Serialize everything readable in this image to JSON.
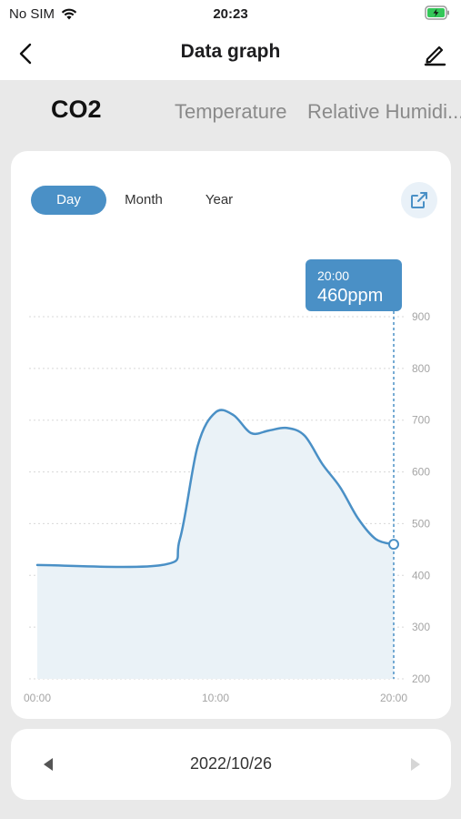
{
  "status": {
    "carrier": "No SIM",
    "time": "20:23"
  },
  "nav": {
    "title": "Data graph"
  },
  "tabs": [
    {
      "label": "CO2",
      "active": true
    },
    {
      "label": "Temperature",
      "active": false
    },
    {
      "label": "Relative Humidi...",
      "active": false
    }
  ],
  "periods": [
    {
      "label": "Day",
      "active": true
    },
    {
      "label": "Month",
      "active": false
    },
    {
      "label": "Year",
      "active": false
    }
  ],
  "tooltip": {
    "time": "20:00",
    "value": "460ppm"
  },
  "date": "2022/10/26",
  "colors": {
    "accent": "#4a90c6",
    "area": "#eaf2f7",
    "grid": "#d8d8d8",
    "axis_text": "#a5a5a5"
  },
  "icons": {
    "back": "chevron-left-icon",
    "edit": "pencil-icon",
    "share": "external-link-icon",
    "prev": "triangle-left-icon",
    "next": "triangle-right-icon"
  },
  "chart_data": {
    "type": "area",
    "title": "",
    "xlabel": "",
    "ylabel": "",
    "x_ticks": [
      "00:00",
      "10:00",
      "20:00"
    ],
    "y_ticks": [
      "200",
      "300",
      "400",
      "500",
      "600",
      "700",
      "800",
      "900"
    ],
    "ylim": [
      200,
      900
    ],
    "xlim": [
      0,
      20
    ],
    "y_axis_position": "right",
    "grid": true,
    "series": [
      {
        "x": [
          0,
          7,
          8,
          9,
          10,
          11,
          12,
          13,
          14,
          15,
          16,
          17,
          18,
          19,
          20
        ],
        "values": [
          420,
          420,
          470,
          650,
          715,
          710,
          675,
          680,
          685,
          670,
          615,
          570,
          510,
          470,
          460
        ]
      }
    ],
    "selected": {
      "x": 20,
      "value": 460
    }
  }
}
